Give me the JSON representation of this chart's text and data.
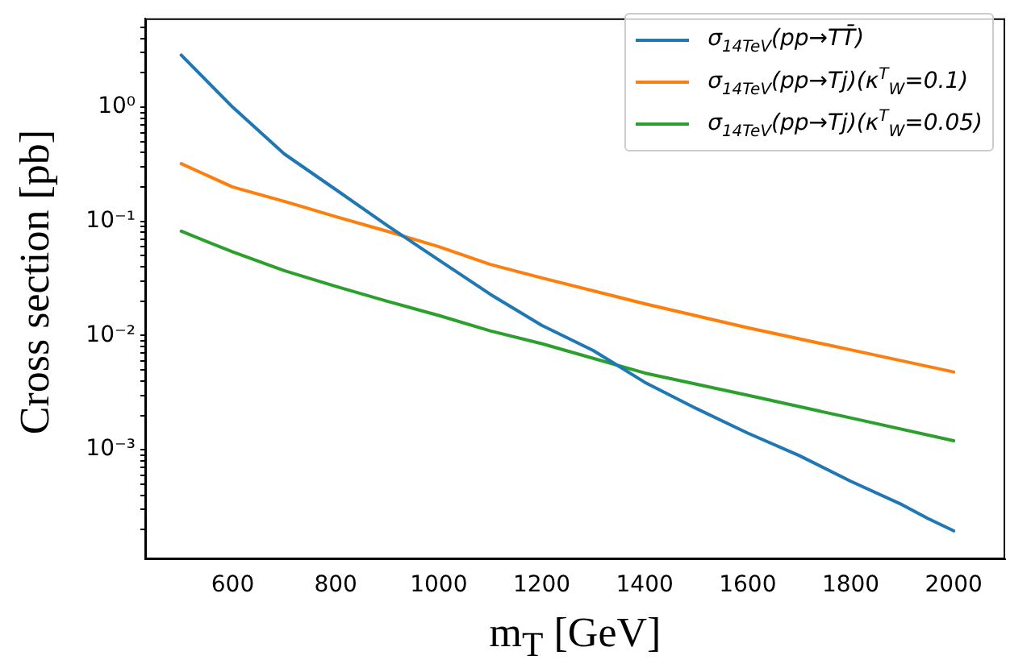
{
  "chart_data": {
    "type": "line",
    "xlabel": "m$_{T}$ [GeV]",
    "ylabel": "Cross section [pb]",
    "log": "y",
    "grid": false,
    "legend": "top right",
    "marker": "none",
    "line_style": "solid",
    "x": [
      500,
      600,
      700,
      800,
      900,
      1000,
      1100,
      1200,
      1300,
      1400,
      1500,
      1600,
      1700,
      1800,
      1900,
      1950,
      2000
    ],
    "xlim": [
      430,
      2100
    ],
    "xticks": [
      600,
      800,
      1000,
      1200,
      1400,
      1600,
      1800,
      2000
    ],
    "ylim": [
      0.00011,
      6
    ],
    "yticks": [
      {
        "value": 0.0002,
        "label": null
      },
      {
        "value": 0.0003,
        "label": null
      },
      {
        "value": 0.0004,
        "label": null
      },
      {
        "value": 0.0005,
        "label": null
      },
      {
        "value": 0.0006,
        "label": null
      },
      {
        "value": 0.0007,
        "label": null
      },
      {
        "value": 0.0008,
        "label": null
      },
      {
        "value": 0.0009,
        "label": null
      },
      {
        "value": 0.001,
        "label": "10⁻³"
      },
      {
        "value": 0.002,
        "label": null
      },
      {
        "value": 0.003,
        "label": null
      },
      {
        "value": 0.004,
        "label": null
      },
      {
        "value": 0.005,
        "label": null
      },
      {
        "value": 0.006,
        "label": null
      },
      {
        "value": 0.007,
        "label": null
      },
      {
        "value": 0.008,
        "label": null
      },
      {
        "value": 0.009,
        "label": null
      },
      {
        "value": 0.01,
        "label": "10⁻²"
      },
      {
        "value": 0.02,
        "label": null
      },
      {
        "value": 0.03,
        "label": null
      },
      {
        "value": 0.04,
        "label": null
      },
      {
        "value": 0.05,
        "label": null
      },
      {
        "value": 0.06,
        "label": null
      },
      {
        "value": 0.07,
        "label": null
      },
      {
        "value": 0.08,
        "label": null
      },
      {
        "value": 0.09,
        "label": null
      },
      {
        "value": 0.1,
        "label": "10⁻¹"
      },
      {
        "value": 0.2,
        "label": null
      },
      {
        "value": 0.3,
        "label": null
      },
      {
        "value": 0.4,
        "label": null
      },
      {
        "value": 0.5,
        "label": null
      },
      {
        "value": 0.6,
        "label": null
      },
      {
        "value": 0.7,
        "label": null
      },
      {
        "value": 0.8,
        "label": null
      },
      {
        "value": 0.9,
        "label": null
      },
      {
        "value": 1,
        "label": "10⁰"
      },
      {
        "value": 2,
        "label": null
      },
      {
        "value": 3,
        "label": null
      },
      {
        "value": 4,
        "label": null
      },
      {
        "value": 5,
        "label": null
      }
    ],
    "series": [
      {
        "name": "σ$_{14TeV}$(pp→TT̄)",
        "color": "#1f77b4",
        "values": [
          2.86,
          1.0,
          0.39,
          0.19,
          0.092,
          0.046,
          0.023,
          0.0123,
          0.0074,
          0.0039,
          0.0023,
          0.0014,
          0.00089,
          0.00053,
          0.00033,
          0.00025,
          0.000195
        ]
      },
      {
        "name": "σ$_{14TeV}$(pp→Tj)(κ$^{T}$$_{W}$=0.1)",
        "color": "#ff7f0e",
        "x": [
          500,
          600,
          700,
          800,
          900,
          1000,
          1100,
          1200,
          1400,
          1600,
          1800,
          2000
        ],
        "values": [
          0.32,
          0.2,
          0.15,
          0.11,
          0.082,
          0.06,
          0.042,
          0.032,
          0.019,
          0.0117,
          0.0075,
          0.0048
        ]
      },
      {
        "name": "σ$_{14TeV}$(pp→Tj)(κ$^{T}$$_{W}$=0.05)",
        "color": "#2ca02c",
        "x": [
          500,
          600,
          700,
          800,
          900,
          1000,
          1100,
          1200,
          1400,
          1600,
          1800,
          2000
        ],
        "values": [
          0.082,
          0.054,
          0.037,
          0.027,
          0.02,
          0.015,
          0.011,
          0.0085,
          0.0047,
          0.003,
          0.0019,
          0.0012
        ]
      }
    ]
  }
}
